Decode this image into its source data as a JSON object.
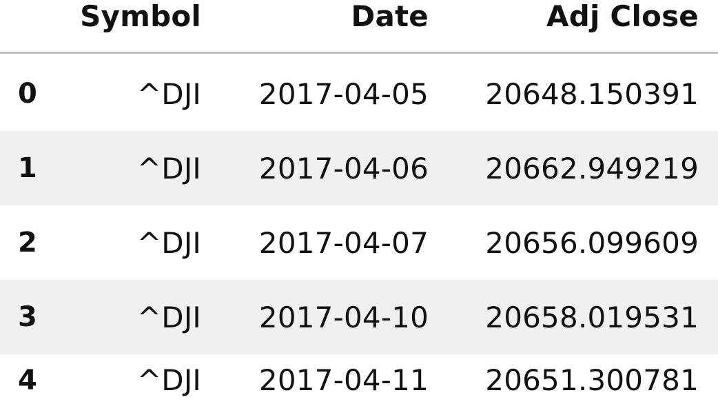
{
  "table": {
    "columns": [
      "",
      "Symbol",
      "Date",
      "Adj Close"
    ],
    "rows": [
      {
        "index": "0",
        "symbol": "^DJI",
        "date": "2017-04-05",
        "adj_close": "20648.150391"
      },
      {
        "index": "1",
        "symbol": "^DJI",
        "date": "2017-04-06",
        "adj_close": "20662.949219"
      },
      {
        "index": "2",
        "symbol": "^DJI",
        "date": "2017-04-07",
        "adj_close": "20656.099609"
      },
      {
        "index": "3",
        "symbol": "^DJI",
        "date": "2017-04-10",
        "adj_close": "20658.019531"
      },
      {
        "index": "4",
        "symbol": "^DJI",
        "date": "2017-04-11",
        "adj_close": "20651.300781"
      }
    ],
    "stripe_color": "#f0f0f0",
    "header_rule_color": "#bdbdbd"
  }
}
